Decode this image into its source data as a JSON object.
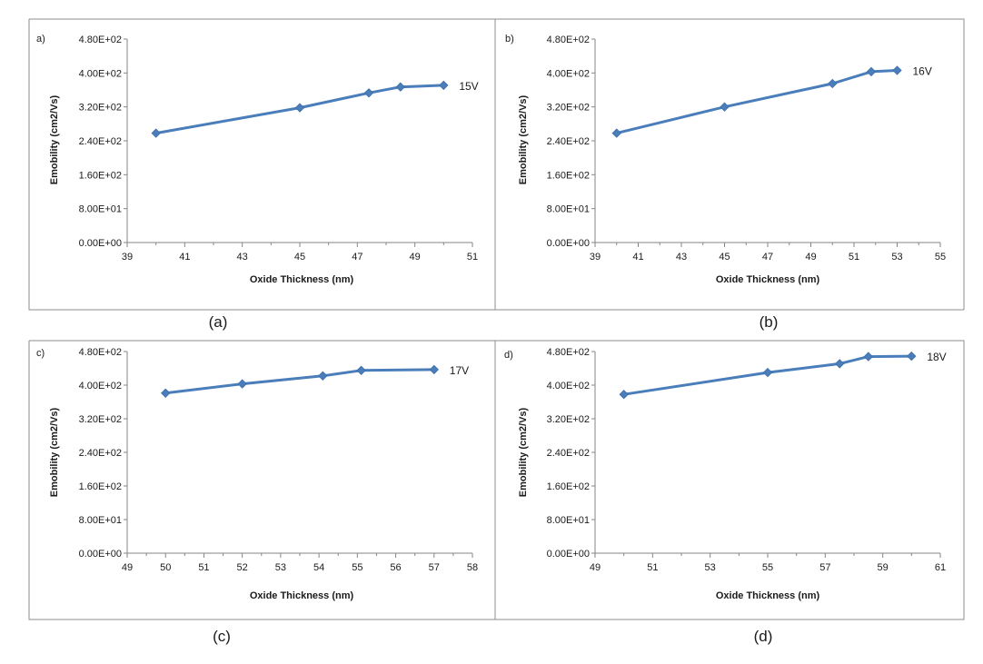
{
  "chart_data": [
    {
      "type": "line",
      "panel_tag": "a)",
      "caption": "(a)",
      "xlabel": "Oxide Thickness  (nm)",
      "ylabel": "Emobility (cm2/Vs)",
      "xlim": [
        39,
        51
      ],
      "ylim": [
        0,
        480
      ],
      "x_ticks": [
        "39",
        "41",
        "43",
        "45",
        "47",
        "49",
        "51"
      ],
      "y_ticks": [
        "0.00E+00",
        "8.00E+01",
        "1.60E+02",
        "2.40E+02",
        "3.20E+02",
        "4.00E+02",
        "4.80E+02"
      ],
      "series": [
        {
          "label": "15V",
          "x": [
            40,
            45,
            47.4,
            48.5,
            50
          ],
          "y": [
            258,
            318,
            353,
            367,
            371
          ]
        }
      ]
    },
    {
      "type": "line",
      "panel_tag": "b)",
      "caption": "(b)",
      "xlabel": "Oxide Thickness  (nm)",
      "ylabel": "Emobility (cm2/Vs)",
      "xlim": [
        39,
        55
      ],
      "ylim": [
        0,
        480
      ],
      "x_ticks": [
        "39",
        "41",
        "43",
        "45",
        "47",
        "49",
        "51",
        "53",
        "55"
      ],
      "y_ticks": [
        "0.00E+00",
        "8.00E+01",
        "1.60E+02",
        "2.40E+02",
        "3.20E+02",
        "4.00E+02",
        "4.80E+02"
      ],
      "series": [
        {
          "label": "16V",
          "x": [
            40,
            45,
            50,
            51.8,
            53
          ],
          "y": [
            258,
            320,
            375,
            403,
            406
          ]
        }
      ]
    },
    {
      "type": "line",
      "panel_tag": "c)",
      "caption": "(c)",
      "xlabel": "Oxide Thickness  (nm)",
      "ylabel": "Emobility (cm2/Vs)",
      "xlim": [
        49,
        58
      ],
      "ylim": [
        0,
        480
      ],
      "x_ticks": [
        "49",
        "50",
        "51",
        "52",
        "53",
        "54",
        "55",
        "56",
        "57",
        "58"
      ],
      "y_ticks": [
        "0.00E+00",
        "8.00E+01",
        "1.60E+02",
        "2.40E+02",
        "3.20E+02",
        "4.00E+02",
        "4.80E+02"
      ],
      "series": [
        {
          "label": "17V",
          "x": [
            50,
            52,
            54.1,
            55.1,
            57
          ],
          "y": [
            381,
            403,
            422,
            435,
            437
          ]
        }
      ]
    },
    {
      "type": "line",
      "panel_tag": "d)",
      "caption": "(d)",
      "xlabel": "Oxide Thickness  (nm)",
      "ylabel": "Emobility (cm2/Vs)",
      "xlim": [
        49,
        61
      ],
      "ylim": [
        0,
        480
      ],
      "x_ticks": [
        "49",
        "51",
        "53",
        "55",
        "57",
        "59",
        "61"
      ],
      "y_ticks": [
        "0.00E+00",
        "8.00E+01",
        "1.60E+02",
        "2.40E+02",
        "3.20E+02",
        "4.00E+02",
        "4.80E+02"
      ],
      "series": [
        {
          "label": "18V",
          "x": [
            50,
            55,
            57.5,
            58.5,
            60
          ],
          "y": [
            378,
            430,
            451,
            468,
            469
          ]
        }
      ]
    }
  ]
}
